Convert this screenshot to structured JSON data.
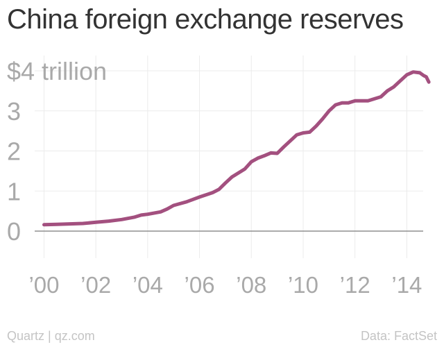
{
  "chart_data": {
    "type": "line",
    "title": "China foreign exchange reserves",
    "xlabel": "",
    "ylabel": "",
    "y_unit_label": "$4 trillion",
    "xlim": [
      1999.8,
      2014.9
    ],
    "ylim": [
      0,
      4
    ],
    "y_ticks": [
      {
        "value": 0,
        "label": "0"
      },
      {
        "value": 1,
        "label": "1"
      },
      {
        "value": 2,
        "label": "2"
      },
      {
        "value": 3,
        "label": "3"
      },
      {
        "value": 4,
        "label": "$4 trillion"
      }
    ],
    "x_ticks": [
      {
        "value": 2000,
        "label": "’00"
      },
      {
        "value": 2002,
        "label": "’02"
      },
      {
        "value": 2004,
        "label": "’04"
      },
      {
        "value": 2006,
        "label": "’06"
      },
      {
        "value": 2008,
        "label": "’08"
      },
      {
        "value": 2010,
        "label": "’10"
      },
      {
        "value": 2012,
        "label": "’12"
      },
      {
        "value": 2014,
        "label": "’14"
      }
    ],
    "grid": true,
    "line_color": "#a3507f",
    "series": [
      {
        "name": "",
        "x": [
          2000.0,
          2000.5,
          2001.0,
          2001.5,
          2002.0,
          2002.5,
          2003.0,
          2003.5,
          2003.75,
          2004.0,
          2004.5,
          2004.75,
          2005.0,
          2005.5,
          2006.0,
          2006.5,
          2006.75,
          2007.0,
          2007.25,
          2007.5,
          2007.75,
          2008.0,
          2008.25,
          2008.5,
          2008.75,
          2009.0,
          2009.25,
          2009.5,
          2009.75,
          2010.0,
          2010.25,
          2010.5,
          2010.75,
          2011.0,
          2011.25,
          2011.5,
          2011.75,
          2012.0,
          2012.25,
          2012.5,
          2012.75,
          2013.0,
          2013.25,
          2013.5,
          2013.75,
          2014.0,
          2014.25,
          2014.5,
          2014.65,
          2014.75,
          2014.85
        ],
        "values": [
          0.16,
          0.17,
          0.18,
          0.19,
          0.22,
          0.25,
          0.29,
          0.35,
          0.4,
          0.42,
          0.48,
          0.55,
          0.64,
          0.73,
          0.85,
          0.96,
          1.04,
          1.2,
          1.35,
          1.45,
          1.55,
          1.73,
          1.82,
          1.88,
          1.95,
          1.94,
          2.1,
          2.25,
          2.4,
          2.45,
          2.47,
          2.62,
          2.8,
          3.0,
          3.15,
          3.2,
          3.2,
          3.25,
          3.25,
          3.25,
          3.3,
          3.35,
          3.5,
          3.6,
          3.75,
          3.9,
          3.97,
          3.95,
          3.88,
          3.85,
          3.72
        ]
      }
    ]
  },
  "footer": {
    "source_left": "Quartz | qz.com",
    "source_right": "Data: FactSet"
  }
}
